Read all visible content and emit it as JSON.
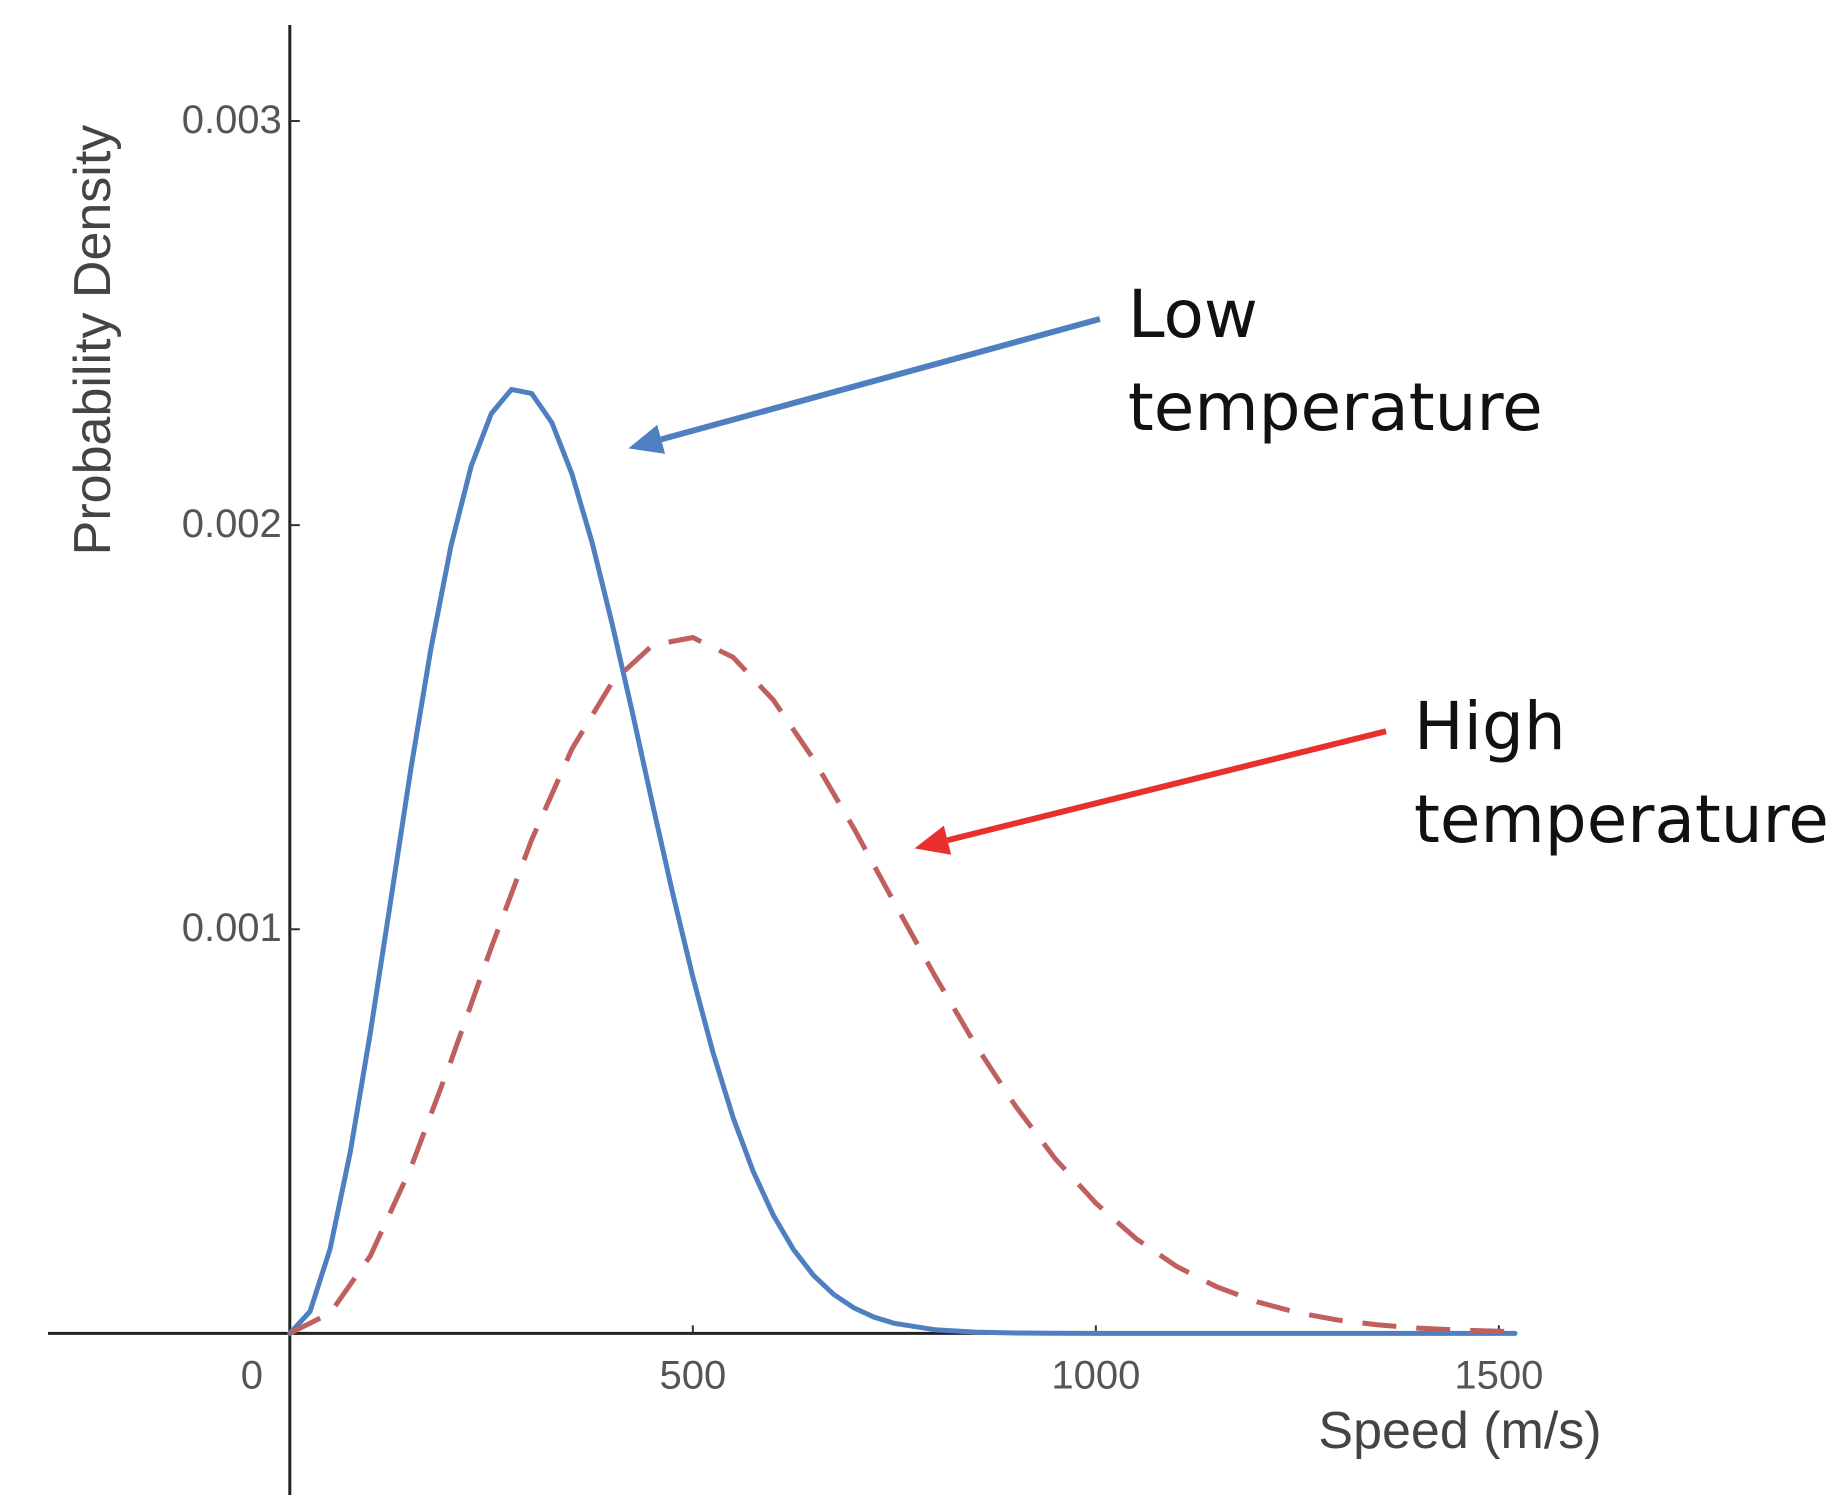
{
  "chart_data": {
    "type": "line",
    "title": "",
    "xlabel": "Speed (m/s)",
    "ylabel": "Probability Density",
    "xlim": [
      -300,
      1520
    ],
    "ylim": [
      -0.0004,
      0.00325
    ],
    "x_ticks": [
      {
        "value": 0,
        "label": "0"
      },
      {
        "value": 500,
        "label": "500"
      },
      {
        "value": 1000,
        "label": "1000"
      },
      {
        "value": 1500,
        "label": "1500"
      }
    ],
    "y_ticks": [
      {
        "value": 0.001,
        "label": "0.001"
      },
      {
        "value": 0.002,
        "label": "0.002"
      },
      {
        "value": 0.003,
        "label": "0.003"
      }
    ],
    "grid": false,
    "series": [
      {
        "color": "#4f7fc1",
        "dash": "solid",
        "x": [
          0,
          25,
          50,
          75,
          100,
          125,
          150,
          175,
          200,
          225,
          250,
          275,
          300,
          325,
          350,
          375,
          400,
          425,
          450,
          475,
          500,
          525,
          550,
          575,
          600,
          625,
          650,
          675,
          700,
          725,
          750,
          800,
          850,
          900,
          950,
          1000,
          1100,
          1200,
          1300,
          1400,
          1520
        ],
        "y": [
          0,
          5.4e-05,
          0.000209,
          0.000449,
          0.000745,
          0.001069,
          0.001394,
          0.001694,
          0.001949,
          0.002146,
          0.002276,
          0.002336,
          0.002326,
          0.002254,
          0.002127,
          0.001957,
          0.001755,
          0.001536,
          0.00131,
          0.001089,
          0.000882,
          0.000695,
          0.000534,
          0.0004,
          0.000292,
          0.000207,
          0.000143,
          9.6e-05,
          6.3e-05,
          4e-05,
          2.5e-05,
          9e-06,
          3e-06,
          1e-06,
          2e-07,
          0,
          0,
          0,
          0,
          0,
          0
        ]
      },
      {
        "color": "#c0605e",
        "dash": "dashed",
        "x": [
          0,
          50,
          100,
          150,
          200,
          250,
          300,
          350,
          400,
          450,
          500,
          550,
          600,
          650,
          700,
          750,
          800,
          850,
          900,
          950,
          1000,
          1050,
          1100,
          1150,
          1200,
          1250,
          1300,
          1350,
          1400,
          1450,
          1520
        ],
        "y": [
          0,
          5e-05,
          0.000192,
          0.000409,
          0.000674,
          0.000955,
          0.001221,
          0.001446,
          0.001611,
          0.001703,
          0.001722,
          0.001673,
          0.001567,
          0.00142,
          0.001249,
          0.001066,
          0.000886,
          0.000716,
          0.000563,
          0.000431,
          0.000322,
          0.000234,
          0.000166,
          0.000115,
          7.8e-05,
          5.1e-05,
          3.3e-05,
          2.1e-05,
          1.3e-05,
          8e-06,
          4e-06
        ]
      }
    ],
    "annotations": [
      {
        "lines": [
          "Low",
          "temperature"
        ],
        "color": "#4f7fc1",
        "arrow_tip": [
          420,
          0.00219
        ],
        "arrow_tail": [
          1005,
          0.00251
        ]
      },
      {
        "lines": [
          "High",
          "temperature"
        ],
        "color": "#e8312f",
        "arrow_tip": [
          775,
          0.0012
        ],
        "arrow_tail": [
          1360,
          0.00149
        ]
      }
    ]
  }
}
